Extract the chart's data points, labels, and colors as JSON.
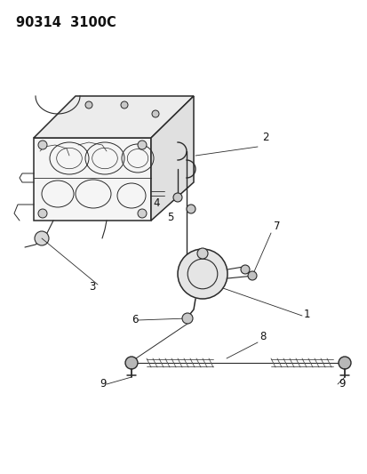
{
  "title": "90314  3100C",
  "bg_color": "#ffffff",
  "line_color": "#2a2a2a",
  "label_color": "#111111",
  "title_fontsize": 10.5,
  "label_fontsize": 8.5,
  "fig_width": 4.14,
  "fig_height": 5.33,
  "dpi": 100
}
